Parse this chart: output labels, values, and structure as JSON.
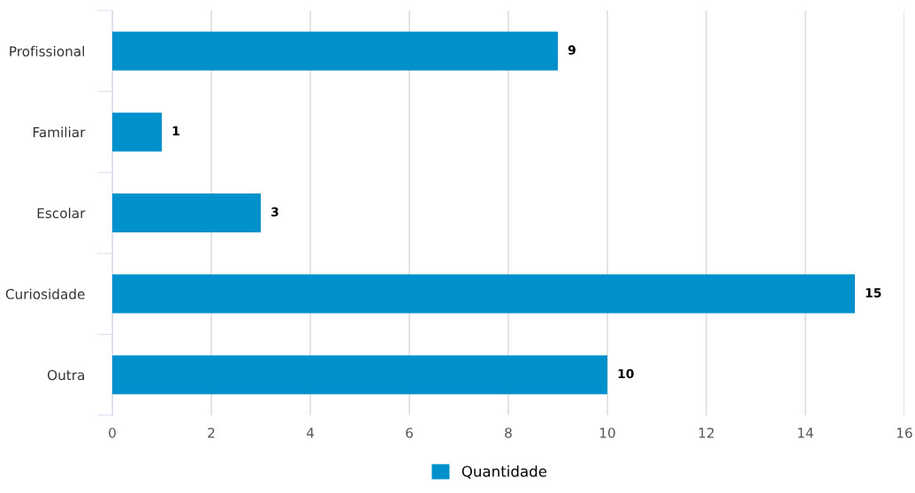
{
  "chart_data": {
    "type": "bar",
    "orientation": "horizontal",
    "categories": [
      "Profissional",
      "Familiar",
      "Escolar",
      "Curiosidade",
      "Outra"
    ],
    "series": [
      {
        "name": "Quantidade",
        "color": "#0090cb",
        "values": [
          9,
          1,
          3,
          15,
          10
        ]
      }
    ],
    "xlim": [
      0,
      16
    ],
    "xticks": [
      0,
      2,
      4,
      6,
      8,
      10,
      12,
      14,
      16
    ],
    "grid": "x",
    "legend": "bottom",
    "data_labels": true
  }
}
